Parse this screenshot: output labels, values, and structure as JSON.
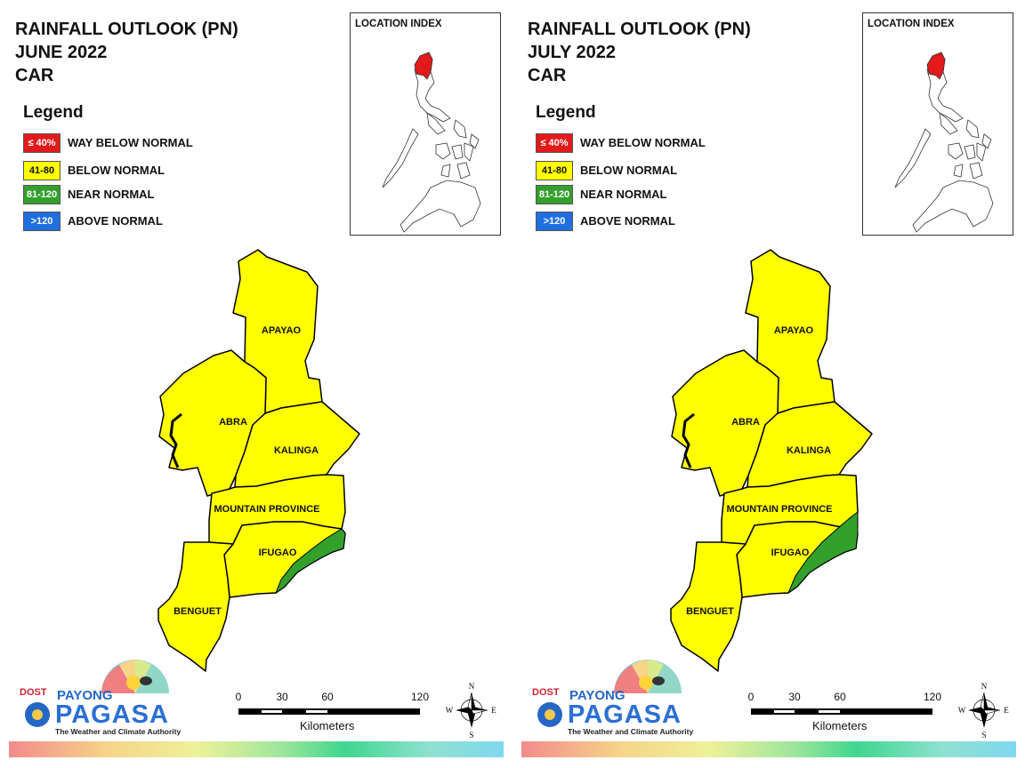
{
  "panels": [
    {
      "title_line1": "RAINFALL OUTLOOK (PN)",
      "title_line2": "JUNE 2022",
      "title_line3": "CAR",
      "ifugao_green": "small"
    },
    {
      "title_line1": "RAINFALL OUTLOOK (PN)",
      "title_line2": "JULY 2022",
      "title_line3": "CAR",
      "ifugao_green": "large"
    }
  ],
  "legend": {
    "title": "Legend",
    "items": [
      {
        "range": "≤ 40%",
        "label": "WAY BELOW NORMAL",
        "color": "#e31a1c"
      },
      {
        "range": "41-80",
        "label": "BELOW NORMAL",
        "color": "#ffff00"
      },
      {
        "range": "81-120",
        "label": "NEAR NORMAL",
        "color": "#33a02c"
      },
      {
        "range": ">120",
        "label": "ABOVE NORMAL",
        "color": "#1f6fe0"
      }
    ]
  },
  "inset": {
    "title": "LOCATION INDEX",
    "highlight_color": "#e31a1c"
  },
  "provinces": {
    "apayao": "APAYAO",
    "abra": "ABRA",
    "kalinga": "KALINGA",
    "mountain_province": "MOUNTAIN PROVINCE",
    "ifugao": "IFUGAO",
    "benguet": "BENGUET"
  },
  "scale": {
    "ticks": [
      "0",
      "30",
      "60",
      "120"
    ],
    "units": "Kilometers"
  },
  "compass": {
    "n": "N",
    "s": "S",
    "e": "E",
    "w": "W"
  },
  "logo": {
    "dost": "DOST",
    "payong": "PAYONG",
    "pagasa": "PAGASA",
    "tagline": "The Weather and Climate Authority"
  },
  "colors": {
    "below_normal": "#ffff00",
    "near_normal": "#33a02c",
    "outline": "#000000"
  }
}
